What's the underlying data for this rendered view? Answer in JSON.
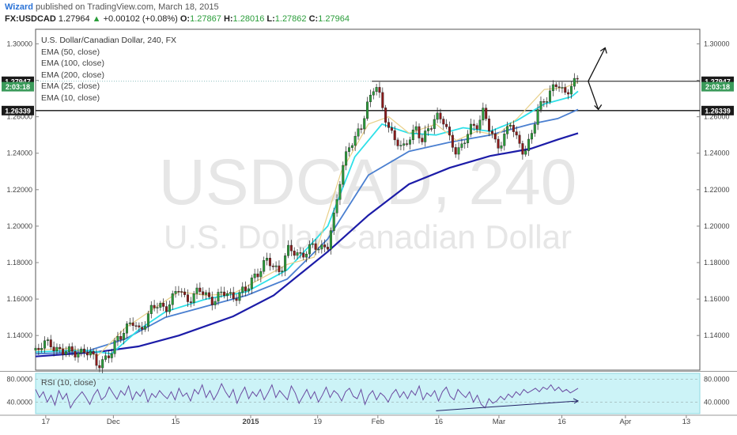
{
  "header": {
    "author": "Wizard",
    "published": "published on TradingView.com, March 18, 2015",
    "symbol": "FX:USDCAD",
    "last": "1.27964",
    "change": "+0.00102 (+0.08%)",
    "o_label": "O:",
    "o": "1.27867",
    "h_label": "H:",
    "h": "1.28016",
    "l_label": "L:",
    "l": "1.27862",
    "c_label": "C:",
    "c": "1.27964"
  },
  "legend": {
    "title": "U.S. Dollar/Canadian Dollar, 240, FX",
    "items": [
      "EMA (50, close)",
      "EMA (100, close)",
      "EMA (200, close)",
      "EMA (25, close)",
      "EMA (10, close)"
    ]
  },
  "rsi_label": "RSI (10, close)",
  "colors": {
    "up": "#2a9d3a",
    "down": "#8b1a1a",
    "ema10": "#e8d08a",
    "ema25": "#2ee0e8",
    "ema50": "#4a7fd0",
    "ema200": "#1c1ca8",
    "rsi": "#6a4aa0",
    "rsi_bg": "#ccf3f7"
  },
  "chart_data": {
    "type": "line",
    "title": "U.S. Dollar/Canadian Dollar, 240, FX",
    "watermark_symbol": "USDCAD, 240",
    "watermark_name": "U.S. Dollar/Canadian Dollar",
    "ylim": [
      1.121,
      1.308
    ],
    "y_ticks": [
      "1.30000",
      "1.28000",
      "1.26000",
      "1.24000",
      "1.22000",
      "1.20000",
      "1.18000",
      "1.16000",
      "1.14000"
    ],
    "x_ticks": [
      {
        "label": "17",
        "x": 0.3
      },
      {
        "label": "Dec",
        "x": 10.3
      },
      {
        "label": "15",
        "x": 19.5
      },
      {
        "label": "2015",
        "x": 30.6
      },
      {
        "label": "19",
        "x": 40.5
      },
      {
        "label": "Feb",
        "x": 49.4
      },
      {
        "label": "16",
        "x": 58.4
      },
      {
        "label": "Mar",
        "x": 67.3
      },
      {
        "label": "16",
        "x": 76.6
      },
      {
        "label": "Apr",
        "x": 86.0
      },
      {
        "label": "13",
        "x": 95.0
      }
    ],
    "x_range": [
      -1.2,
      97.0
    ],
    "price_labels": [
      {
        "value": "1.27947",
        "y": 1.27947,
        "style": "dark"
      },
      {
        "value": "2:03:18",
        "y": 1.2765,
        "style": "green"
      },
      {
        "value": "1.26339",
        "y": 1.26339,
        "style": "dark"
      }
    ],
    "levels": [
      {
        "name": "resistance",
        "y": 1.27947,
        "x_start": 48.5
      },
      {
        "name": "support",
        "y": 1.26339,
        "x_start": -1.2
      }
    ],
    "series": [
      {
        "name": "EMA (200, close)",
        "points": [
          [
            -1.2,
            1.1285
          ],
          [
            8,
            1.131
          ],
          [
            14,
            1.134
          ],
          [
            20,
            1.14
          ],
          [
            28,
            1.1505
          ],
          [
            34,
            1.162
          ],
          [
            42,
            1.186
          ],
          [
            48,
            1.206
          ],
          [
            54,
            1.223
          ],
          [
            60,
            1.232
          ],
          [
            66,
            1.2385
          ],
          [
            72,
            1.2425
          ],
          [
            76,
            1.2475
          ],
          [
            79,
            1.251
          ]
        ]
      },
      {
        "name": "EMA (50, close)",
        "points": [
          [
            -1.2,
            1.13
          ],
          [
            6,
            1.131
          ],
          [
            12,
            1.138
          ],
          [
            18,
            1.15
          ],
          [
            24,
            1.156
          ],
          [
            30,
            1.162
          ],
          [
            36,
            1.171
          ],
          [
            42,
            1.193
          ],
          [
            48,
            1.228
          ],
          [
            54,
            1.241
          ],
          [
            60,
            1.246
          ],
          [
            66,
            1.25
          ],
          [
            72,
            1.256
          ],
          [
            76,
            1.259
          ],
          [
            79,
            1.264
          ]
        ]
      },
      {
        "name": "EMA (25, close)",
        "points": [
          [
            -1.2,
            1.131
          ],
          [
            6,
            1.132
          ],
          [
            10,
            1.13
          ],
          [
            14,
            1.143
          ],
          [
            18,
            1.153
          ],
          [
            24,
            1.16
          ],
          [
            30,
            1.164
          ],
          [
            36,
            1.176
          ],
          [
            42,
            1.2
          ],
          [
            46,
            1.238
          ],
          [
            50,
            1.256
          ],
          [
            54,
            1.251
          ],
          [
            58,
            1.25
          ],
          [
            62,
            1.254
          ],
          [
            66,
            1.252
          ],
          [
            70,
            1.258
          ],
          [
            74,
            1.267
          ],
          [
            78,
            1.271
          ],
          [
            79,
            1.274
          ]
        ]
      },
      {
        "name": "EMA (10, close)",
        "points": [
          [
            -1.2,
            1.132
          ],
          [
            4,
            1.133
          ],
          [
            8,
            1.129
          ],
          [
            12,
            1.144
          ],
          [
            16,
            1.154
          ],
          [
            20,
            1.164
          ],
          [
            24,
            1.162
          ],
          [
            28,
            1.163
          ],
          [
            32,
            1.171
          ],
          [
            36,
            1.179
          ],
          [
            40,
            1.183
          ],
          [
            44,
            1.23
          ],
          [
            48,
            1.256
          ],
          [
            51,
            1.26
          ],
          [
            54,
            1.251
          ],
          [
            58,
            1.256
          ],
          [
            61,
            1.247
          ],
          [
            64,
            1.252
          ],
          [
            67,
            1.25
          ],
          [
            70,
            1.259
          ],
          [
            74,
            1.275
          ],
          [
            77,
            1.276
          ],
          [
            79,
            1.279
          ]
        ]
      },
      {
        "name": "price",
        "points": [
          [
            -1.2,
            1.132
          ],
          [
            1,
            1.136
          ],
          [
            3,
            1.13
          ],
          [
            5,
            1.132
          ],
          [
            7,
            1.129
          ],
          [
            8,
            1.125
          ],
          [
            10,
            1.129
          ],
          [
            11,
            1.14
          ],
          [
            13,
            1.147
          ],
          [
            14,
            1.142
          ],
          [
            16,
            1.155
          ],
          [
            18,
            1.156
          ],
          [
            20,
            1.165
          ],
          [
            21,
            1.16
          ],
          [
            23,
            1.164
          ],
          [
            25,
            1.16
          ],
          [
            27,
            1.163
          ],
          [
            28,
            1.162
          ],
          [
            30,
            1.164
          ],
          [
            31,
            1.173
          ],
          [
            33,
            1.18
          ],
          [
            35,
            1.176
          ],
          [
            36,
            1.186
          ],
          [
            38,
            1.185
          ],
          [
            40,
            1.188
          ],
          [
            42,
            1.19
          ],
          [
            43,
            1.205
          ],
          [
            44,
            1.23
          ],
          [
            45,
            1.245
          ],
          [
            46,
            1.246
          ],
          [
            47,
            1.255
          ],
          [
            48,
            1.27
          ],
          [
            49,
            1.278
          ],
          [
            50,
            1.265
          ],
          [
            51,
            1.255
          ],
          [
            52,
            1.248
          ],
          [
            53,
            1.24
          ],
          [
            54,
            1.249
          ],
          [
            55,
            1.255
          ],
          [
            56,
            1.245
          ],
          [
            57,
            1.254
          ],
          [
            58,
            1.262
          ],
          [
            59,
            1.258
          ],
          [
            60,
            1.247
          ],
          [
            61,
            1.242
          ],
          [
            62,
            1.245
          ],
          [
            63,
            1.252
          ],
          [
            64,
            1.256
          ],
          [
            65,
            1.264
          ],
          [
            66,
            1.251
          ],
          [
            67,
            1.243
          ],
          [
            68,
            1.25
          ],
          [
            69,
            1.256
          ],
          [
            70,
            1.246
          ],
          [
            71,
            1.242
          ],
          [
            72,
            1.248
          ],
          [
            73,
            1.262
          ],
          [
            74,
            1.27
          ],
          [
            75,
            1.275
          ],
          [
            76,
            1.277
          ],
          [
            77,
            1.272
          ],
          [
            78,
            1.279
          ],
          [
            79,
            1.2796
          ]
        ]
      }
    ],
    "projection": {
      "from": [
        80.5,
        1.2795
      ],
      "up": [
        83,
        1.2978
      ],
      "down": [
        82,
        1.264
      ]
    },
    "rsi": {
      "name": "RSI (10, close)",
      "ylim": [
        20,
        90
      ],
      "y_ticks": [
        "80.0000",
        "40.0000"
      ],
      "values": [
        62,
        48,
        58,
        40,
        52,
        35,
        60,
        45,
        55,
        30,
        42,
        50,
        58,
        48,
        36,
        52,
        62,
        44,
        50,
        66,
        55,
        45,
        60,
        52,
        68,
        44,
        58,
        50,
        62,
        40,
        55,
        48,
        60,
        52,
        46,
        58,
        44,
        64,
        50,
        56,
        42,
        62,
        54,
        70,
        48,
        60,
        44,
        56,
        72,
        58,
        48,
        62,
        38,
        54,
        66,
        46,
        58,
        50,
        62,
        44,
        56,
        70,
        48,
        60,
        52,
        44,
        68,
        56,
        38,
        50,
        62,
        46,
        58,
        40,
        52,
        66,
        48,
        60,
        54,
        42,
        58,
        64,
        50,
        46,
        62,
        36,
        52,
        60,
        44,
        56,
        50,
        40,
        54,
        62,
        48,
        58,
        46,
        60,
        52,
        68,
        44,
        56,
        50,
        60,
        42,
        58,
        66,
        50,
        44,
        62,
        54,
        48,
        58,
        40,
        52,
        36,
        30,
        46,
        38,
        42,
        50,
        44,
        54,
        48,
        58,
        52,
        62,
        56,
        60,
        64,
        58,
        66,
        62,
        70,
        60,
        66,
        58,
        62,
        56,
        60,
        64
      ],
      "trendline": [
        [
          58,
          25
        ],
        [
          79,
          42
        ]
      ]
    }
  }
}
